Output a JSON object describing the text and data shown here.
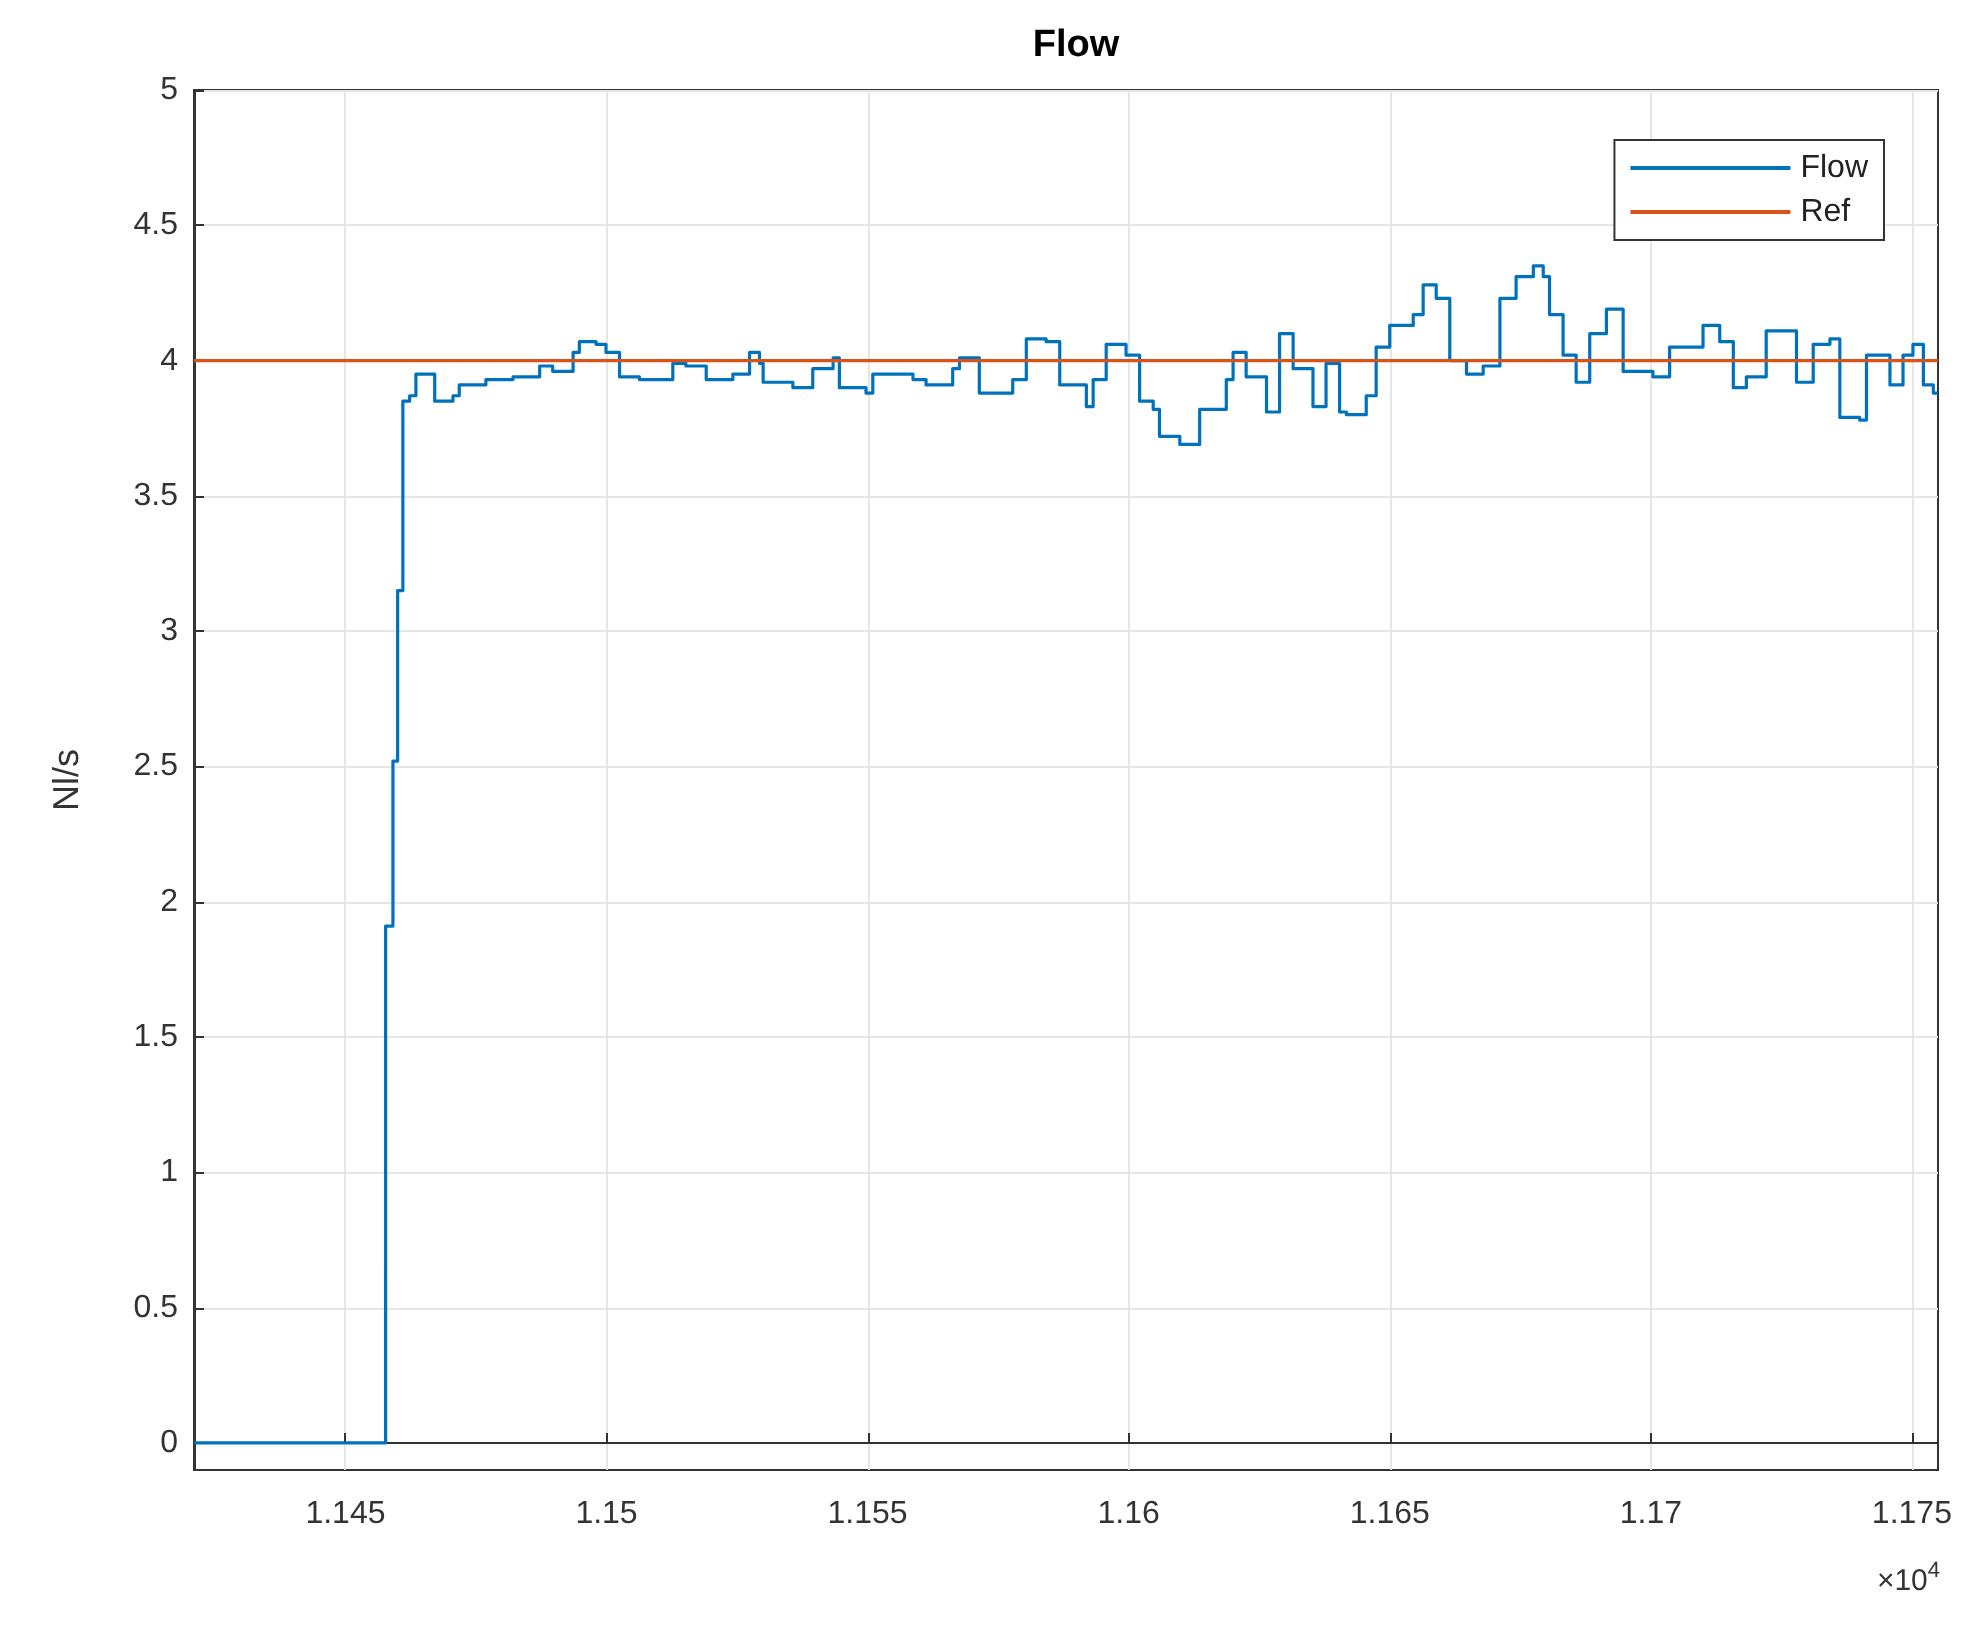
{
  "chart_data": {
    "type": "step",
    "title": "Flow",
    "ylabel": "Nl/s",
    "annotations": [
      "×10$^{4}$"
    ],
    "xlim": [
      1.1421,
      1.1755
    ],
    "xticks": [
      1.145,
      1.15,
      1.155,
      1.16,
      1.165,
      1.17,
      1.175
    ],
    "ylim": [
      -0.1,
      5
    ],
    "yticks": [
      0,
      0.5,
      1,
      1.5,
      2,
      2.5,
      3,
      3.5,
      4,
      4.5,
      5
    ],
    "grid": true,
    "legend": "top right",
    "marker": "none",
    "series": [
      {
        "name": "Flow",
        "color": "#0072bd",
        "x": [
          1.1421,
          1.14577,
          1.14591,
          1.146,
          1.1461,
          1.14623,
          1.14635,
          1.14671,
          1.14706,
          1.14718,
          1.14769,
          1.14821,
          1.14872,
          1.14897,
          1.14936,
          1.14948,
          1.1498,
          1.14999,
          1.15025,
          1.15063,
          1.15127,
          1.15152,
          1.15191,
          1.15242,
          1.15274,
          1.15293,
          1.153,
          1.15357,
          1.15395,
          1.15434,
          1.15446,
          1.15497,
          1.1551,
          1.15587,
          1.15612,
          1.15663,
          1.15676,
          1.15714,
          1.15778,
          1.15804,
          1.15842,
          1.15868,
          1.15919,
          1.15932,
          1.15957,
          1.15995,
          1.16021,
          1.16047,
          1.16059,
          1.16098,
          1.16136,
          1.16187,
          1.162,
          1.16225,
          1.16264,
          1.16289,
          1.16315,
          1.16353,
          1.16378,
          1.16404,
          1.16417,
          1.16455,
          1.16474,
          1.165,
          1.16545,
          1.16564,
          1.16589,
          1.16615,
          1.16647,
          1.16679,
          1.16711,
          1.16742,
          1.16775,
          1.16794,
          1.16806,
          1.16832,
          1.16857,
          1.16883,
          1.16915,
          1.16947,
          1.17004,
          1.17036,
          1.171,
          1.17132,
          1.17158,
          1.17183,
          1.17221,
          1.17279,
          1.17311,
          1.17343,
          1.17362,
          1.174,
          1.17413,
          1.17458,
          1.17483,
          1.17502,
          1.17522,
          1.17541,
          1.1755
        ],
        "values": [
          0,
          1.91,
          2.52,
          3.15,
          3.85,
          3.87,
          3.95,
          3.85,
          3.87,
          3.91,
          3.93,
          3.94,
          3.98,
          3.96,
          4.03,
          4.07,
          4.06,
          4.03,
          3.94,
          3.93,
          3.99,
          3.98,
          3.93,
          3.95,
          4.03,
          3.99,
          3.92,
          3.9,
          3.97,
          4.01,
          3.9,
          3.88,
          3.95,
          3.93,
          3.91,
          3.97,
          4.01,
          3.88,
          3.93,
          4.08,
          4.07,
          3.91,
          3.83,
          3.93,
          4.06,
          4.02,
          3.85,
          3.82,
          3.72,
          3.69,
          3.82,
          3.93,
          4.03,
          3.94,
          3.81,
          4.1,
          3.97,
          3.83,
          3.99,
          3.81,
          3.8,
          3.87,
          4.05,
          4.13,
          4.17,
          4.28,
          4.23,
          4,
          3.95,
          3.98,
          4.23,
          4.31,
          4.35,
          4.31,
          4.17,
          4.02,
          3.92,
          4.1,
          4.19,
          3.96,
          3.94,
          4.05,
          4.13,
          4.07,
          3.9,
          3.94,
          4.11,
          3.92,
          4.06,
          4.08,
          3.79,
          3.78,
          4.02,
          3.91,
          4.02,
          4.06,
          3.91,
          3.88,
          3.88
        ]
      },
      {
        "name": "Ref",
        "type": "line",
        "color": "#d95319",
        "x": [
          1.1421,
          1.1755
        ],
        "values": [
          4,
          4
        ]
      }
    ]
  }
}
